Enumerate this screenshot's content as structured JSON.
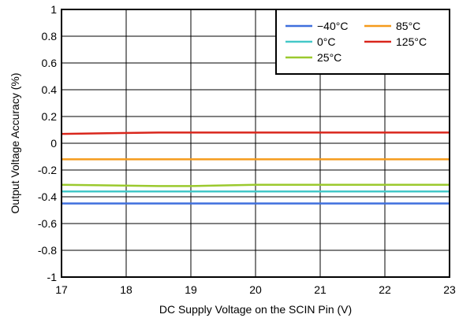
{
  "chart_data": {
    "type": "line",
    "title": "",
    "xlabel": "DC Supply Voltage on the SCIN Pin (V)",
    "ylabel": "Output Voltage Accuracy (%)",
    "xlim": [
      17,
      23
    ],
    "ylim": [
      -1,
      1
    ],
    "xticks": [
      "17",
      "18",
      "19",
      "20",
      "21",
      "22",
      "23"
    ],
    "yticks": [
      "1",
      "0.8",
      "0.6",
      "0.4",
      "0.2",
      "0",
      "-0.2",
      "-0.4",
      "-0.6",
      "-0.8",
      "-1"
    ],
    "grid": true,
    "legend_position": "top-right",
    "series": [
      {
        "name": "−40°C",
        "color": "#3f6fdd",
        "x": [
          17,
          18.5,
          19,
          20,
          21,
          22,
          23
        ],
        "values": [
          -0.45,
          -0.45,
          -0.45,
          -0.45,
          -0.45,
          -0.45,
          -0.45
        ]
      },
      {
        "name": "0°C",
        "color": "#44c8c8",
        "x": [
          17,
          18.5,
          19,
          20,
          21,
          22,
          23
        ],
        "values": [
          -0.36,
          -0.36,
          -0.36,
          -0.36,
          -0.36,
          -0.36,
          -0.36
        ]
      },
      {
        "name": "25°C",
        "color": "#9bc92e",
        "x": [
          17,
          18.5,
          19,
          20,
          21,
          22,
          23
        ],
        "values": [
          -0.31,
          -0.32,
          -0.32,
          -0.31,
          -0.31,
          -0.31,
          -0.31
        ]
      },
      {
        "name": "85°C",
        "color": "#f59b1c",
        "x": [
          17,
          18.5,
          19,
          20,
          21,
          22,
          23
        ],
        "values": [
          -0.12,
          -0.12,
          -0.12,
          -0.12,
          -0.12,
          -0.12,
          -0.12
        ]
      },
      {
        "name": "125°C",
        "color": "#d9261c",
        "x": [
          17,
          18.5,
          19,
          20,
          21,
          22,
          23
        ],
        "values": [
          0.07,
          0.08,
          0.08,
          0.08,
          0.08,
          0.08,
          0.08
        ]
      }
    ],
    "legend_layout": [
      [
        "−40°C",
        "85°C"
      ],
      [
        "0°C",
        "125°C"
      ],
      [
        "25°C"
      ]
    ]
  }
}
